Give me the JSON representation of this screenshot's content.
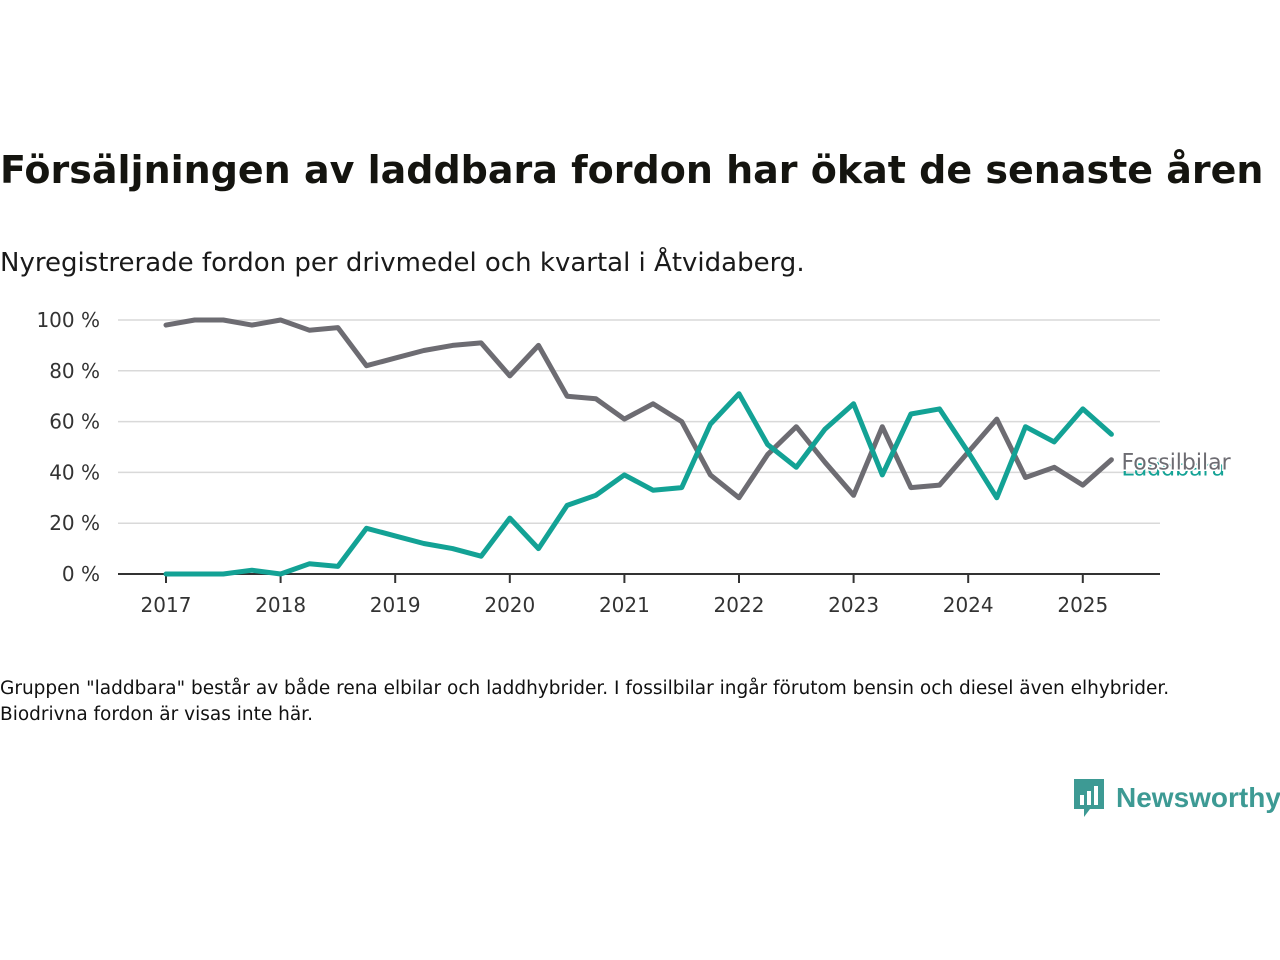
{
  "title": "Försäljningen av laddbara fordon har ökat de senaste åren",
  "subtitle": "Nyregistrerade fordon per drivmedel och kvartal i Åtvidaberg.",
  "note": "Gruppen \"laddbara\" består av både rena elbilar och laddhybrider. I fossilbilar ingår förutom bensin och diesel även elhybrider. Biodrivna fordon är visas inte här.",
  "brand": {
    "name": "Newsworthy",
    "icon": "newsworthy-logo-icon",
    "color": "#3d9a94"
  },
  "chart_data": {
    "type": "line",
    "x": [
      "2017-Q1",
      "2017-Q2",
      "2017-Q3",
      "2017-Q4",
      "2018-Q1",
      "2018-Q2",
      "2018-Q3",
      "2018-Q4",
      "2019-Q1",
      "2019-Q2",
      "2019-Q3",
      "2019-Q4",
      "2020-Q1",
      "2020-Q2",
      "2020-Q3",
      "2020-Q4",
      "2021-Q1",
      "2021-Q2",
      "2021-Q3",
      "2021-Q4",
      "2022-Q1",
      "2022-Q2",
      "2022-Q3",
      "2022-Q4",
      "2023-Q1",
      "2023-Q2",
      "2023-Q3",
      "2023-Q4",
      "2024-Q1",
      "2024-Q2",
      "2024-Q3",
      "2024-Q4",
      "2025-Q1",
      "2025-Q2"
    ],
    "x_ticks": [
      "2017",
      "2018",
      "2019",
      "2020",
      "2021",
      "2022",
      "2023",
      "2024",
      "2025"
    ],
    "y_ticks": [
      "0 %",
      "20 %",
      "40 %",
      "60 %",
      "80 %",
      "100 %"
    ],
    "ylim": [
      0,
      100
    ],
    "grid": true,
    "series": [
      {
        "name": "Fossilbilar",
        "color": "#6d6c72",
        "values": [
          98,
          100,
          100,
          98,
          100,
          96,
          97,
          82,
          85,
          88,
          90,
          91,
          78,
          90,
          70,
          69,
          61,
          67,
          60,
          39,
          30,
          47,
          58,
          44,
          31,
          58,
          34,
          35,
          48,
          61,
          38,
          42,
          35,
          45
        ]
      },
      {
        "name": "Laddbara",
        "color": "#13a295",
        "values": [
          0,
          0,
          0,
          1.5,
          0,
          4,
          3,
          18,
          15,
          12,
          10,
          7,
          22,
          10,
          27,
          31,
          39,
          33,
          34,
          59,
          71,
          51,
          42,
          57,
          67,
          39,
          63,
          65,
          48,
          30,
          58,
          52,
          65,
          55
        ]
      }
    ]
  }
}
